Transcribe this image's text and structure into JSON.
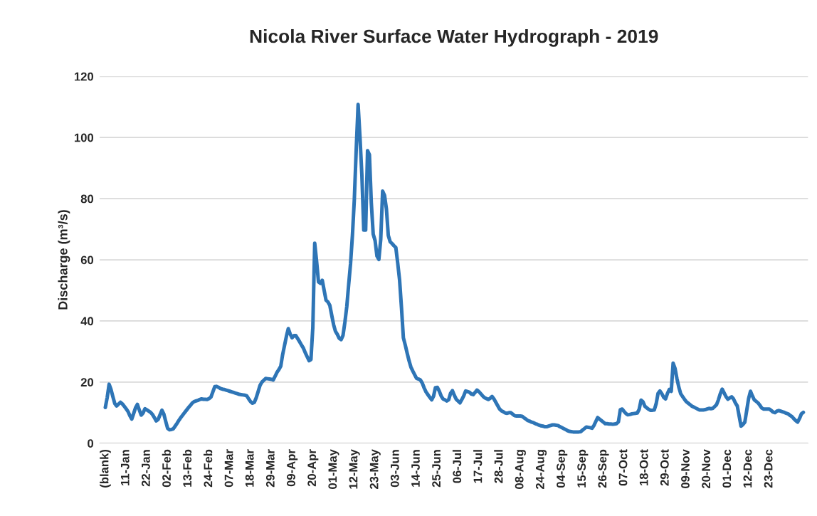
{
  "chart_data": {
    "type": "line",
    "title": "Nicola River Surface Water Hydrograph - 2019",
    "ylabel": "Discharge (m³/s)",
    "categories": [
      "(blank)",
      null,
      null,
      null,
      null,
      null,
      null,
      null,
      null,
      null,
      null,
      "11-Jan",
      null,
      null,
      null,
      null,
      null,
      null,
      null,
      null,
      null,
      null,
      "22-Jan",
      null,
      null,
      null,
      null,
      null,
      null,
      null,
      null,
      null,
      null,
      "02-Feb",
      null,
      null,
      null,
      null,
      null,
      null,
      null,
      null,
      null,
      null,
      "13-Feb",
      null,
      null,
      null,
      null,
      null,
      null,
      null,
      null,
      null,
      null,
      "24-Feb",
      null,
      null,
      null,
      null,
      null,
      null,
      null,
      null,
      null,
      null,
      "07-Mar",
      null,
      null,
      null,
      null,
      null,
      null,
      null,
      null,
      null,
      null,
      "18-Mar",
      null,
      null,
      null,
      null,
      null,
      null,
      null,
      null,
      null,
      null,
      "29-Mar",
      null,
      null,
      null,
      null,
      null,
      null,
      null,
      null,
      null,
      null,
      "09-Apr",
      null,
      null,
      null,
      null,
      null,
      null,
      null,
      null,
      null,
      null,
      "20-Apr",
      null,
      null,
      null,
      null,
      null,
      null,
      null,
      null,
      null,
      null,
      "01-May",
      null,
      null,
      null,
      null,
      null,
      null,
      null,
      null,
      null,
      null,
      "12-May",
      null,
      null,
      null,
      null,
      null,
      null,
      null,
      null,
      null,
      null,
      "23-May",
      null,
      null,
      null,
      null,
      null,
      null,
      null,
      null,
      null,
      null,
      "03-Jun",
      null,
      null,
      null,
      null,
      null,
      null,
      null,
      null,
      null,
      null,
      "14-Jun",
      null,
      null,
      null,
      null,
      null,
      null,
      null,
      null,
      null,
      null,
      "25-Jun",
      null,
      null,
      null,
      null,
      null,
      null,
      null,
      null,
      null,
      null,
      "06-Jul",
      null,
      null,
      null,
      null,
      null,
      null,
      null,
      null,
      null,
      null,
      "17-Jul",
      null,
      null,
      null,
      null,
      null,
      null,
      null,
      null,
      null,
      null,
      "28-Jul",
      null,
      null,
      null,
      null,
      null,
      null,
      null,
      null,
      null,
      null,
      "08-Aug",
      null,
      null,
      null,
      null,
      null,
      null,
      null,
      null,
      null,
      null,
      "24-Aug",
      null,
      null,
      null,
      null,
      null,
      null,
      null,
      null,
      null,
      null,
      "04-Sep",
      null,
      null,
      null,
      null,
      null,
      null,
      null,
      null,
      null,
      null,
      "15-Sep",
      null,
      null,
      null,
      null,
      null,
      null,
      null,
      null,
      null,
      null,
      "26-Sep",
      null,
      null,
      null,
      null,
      null,
      null,
      null,
      null,
      null,
      null,
      "07-Oct",
      null,
      null,
      null,
      null,
      null,
      null,
      null,
      null,
      null,
      null,
      "18-Oct",
      null,
      null,
      null,
      null,
      null,
      null,
      null,
      null,
      null,
      null,
      "29-Oct",
      null,
      null,
      null,
      null,
      null,
      null,
      null,
      null,
      null,
      null,
      "09-Nov",
      null,
      null,
      null,
      null,
      null,
      null,
      null,
      null,
      null,
      null,
      "20-Nov",
      null,
      null,
      null,
      null,
      null,
      null,
      null,
      null,
      null,
      null,
      "01-Dec",
      null,
      null,
      null,
      null,
      null,
      null,
      null,
      null,
      null,
      null,
      "12-Dec",
      null,
      null,
      null,
      null,
      null,
      null,
      null,
      null,
      null,
      null,
      "23-Dec",
      null,
      null,
      null,
      null,
      null,
      null,
      null,
      null,
      null,
      null,
      null,
      null,
      null,
      null,
      null,
      null,
      null,
      null
    ],
    "series": [
      {
        "color": "#2e75b6",
        "values": [
          11.7,
          15.0,
          19.3,
          17.6,
          15.2,
          13.0,
          12.2,
          12.8,
          13.4,
          12.9,
          12.1,
          11.3,
          10.4,
          9.0,
          7.9,
          9.7,
          11.6,
          12.7,
          10.9,
          9.2,
          9.9,
          11.3,
          10.9,
          10.5,
          10.1,
          9.4,
          8.4,
          7.3,
          7.8,
          9.3,
          10.8,
          9.6,
          7.2,
          4.9,
          4.4,
          4.5,
          4.7,
          5.6,
          6.5,
          7.5,
          8.4,
          9.2,
          10.0,
          10.8,
          11.6,
          12.3,
          13.1,
          13.6,
          13.8,
          14.0,
          14.3,
          14.5,
          14.4,
          14.4,
          14.3,
          14.6,
          15.1,
          16.8,
          18.5,
          18.6,
          18.3,
          17.9,
          17.7,
          17.6,
          17.4,
          17.2,
          17.0,
          16.8,
          16.6,
          16.4,
          16.2,
          16.0,
          15.9,
          15.8,
          15.7,
          15.5,
          14.5,
          13.6,
          13.1,
          13.4,
          14.9,
          16.9,
          18.9,
          20.0,
          20.6,
          21.2,
          21.1,
          21.0,
          20.9,
          20.7,
          21.9,
          23.2,
          24.1,
          25.2,
          29,
          32,
          35,
          37.5,
          35.7,
          34.5,
          35.2,
          35.2,
          34.2,
          33.2,
          32.1,
          31.1,
          29.6,
          28.3,
          27.0,
          27.4,
          38.0,
          65.4,
          59.5,
          52.8,
          52.3,
          53.3,
          50.0,
          46.8,
          46.2,
          45.1,
          41.9,
          38.8,
          36.6,
          35.6,
          34.3,
          33.9,
          35.3,
          39.6,
          44.7,
          51.9,
          58.8,
          68.1,
          79.8,
          96.1,
          110.8,
          100.0,
          87.7,
          69.7,
          69.7,
          95.7,
          94.4,
          78.6,
          68.4,
          66.3,
          61.2,
          60.1,
          66.7,
          82.5,
          81.1,
          76.7,
          68.0,
          65.9,
          65.3,
          64.6,
          64.0,
          58.9,
          53.3,
          44.3,
          34.5,
          32.1,
          29.5,
          27.0,
          24.9,
          23.6,
          22.4,
          21.2,
          21.0,
          20.7,
          19.7,
          18.1,
          16.8,
          15.9,
          15.0,
          14.2,
          15.4,
          18.2,
          18.3,
          17.1,
          15.5,
          14.5,
          14.2,
          13.8,
          14.2,
          16.3,
          17.2,
          15.7,
          14.4,
          13.8,
          13.2,
          14.3,
          15.5,
          17.1,
          16.9,
          16.7,
          16.1,
          15.9,
          16.6,
          17.4,
          16.9,
          16.2,
          15.5,
          14.9,
          14.6,
          14.3,
          14.7,
          15.3,
          14.5,
          13.4,
          12.3,
          11.2,
          10.6,
          10.3,
          9.9,
          9.8,
          10.0,
          10.0,
          9.5,
          9.0,
          8.9,
          8.9,
          8.9,
          8.8,
          8.3,
          7.9,
          7.4,
          7.2,
          6.9,
          6.7,
          6.4,
          6.2,
          5.9,
          5.7,
          5.6,
          5.4,
          5.4,
          5.6,
          5.8,
          6.0,
          6.0,
          5.9,
          5.8,
          5.4,
          5.1,
          4.8,
          4.5,
          4.1,
          3.9,
          3.8,
          3.7,
          3.7,
          3.7,
          3.7,
          3.8,
          4.3,
          4.8,
          5.3,
          5.2,
          5.1,
          4.9,
          5.8,
          7.1,
          8.4,
          7.9,
          7.4,
          6.9,
          6.4,
          6.4,
          6.3,
          6.3,
          6.2,
          6.3,
          6.4,
          7.0,
          11.0,
          11.2,
          10.4,
          9.7,
          9.3,
          9.4,
          9.6,
          9.7,
          9.8,
          9.9,
          11.1,
          14.1,
          13.6,
          12.1,
          11.6,
          11.1,
          10.8,
          10.8,
          10.9,
          12.9,
          16.3,
          17.1,
          16.2,
          15.0,
          14.5,
          16.3,
          17.6,
          17.0,
          26.2,
          24.5,
          21.2,
          18.4,
          16.2,
          15.3,
          14.4,
          13.6,
          13.1,
          12.6,
          12.1,
          11.8,
          11.5,
          11.2,
          10.9,
          10.9,
          10.9,
          11.0,
          11.2,
          11.4,
          11.3,
          11.4,
          12.0,
          12.6,
          14.2,
          16.2,
          17.7,
          16.5,
          15.3,
          14.4,
          14.8,
          15.2,
          14.5,
          13.2,
          12.2,
          8.9,
          5.6,
          6.1,
          6.9,
          10.7,
          14.6,
          17.0,
          15.5,
          14.2,
          13.7,
          13.2,
          12.4,
          11.5,
          11.2,
          11.2,
          11.2,
          11.2,
          10.7,
          10.2,
          10.0,
          10.5,
          10.7,
          10.5,
          10.3,
          10.1,
          9.8,
          9.6,
          9.1,
          8.7,
          8.0,
          7.4,
          6.9,
          8.1,
          9.6,
          10.1
        ]
      }
    ],
    "ylim": [
      0,
      120
    ],
    "yticks": [
      0,
      20,
      40,
      60,
      80,
      100,
      120
    ],
    "grid": "y"
  }
}
